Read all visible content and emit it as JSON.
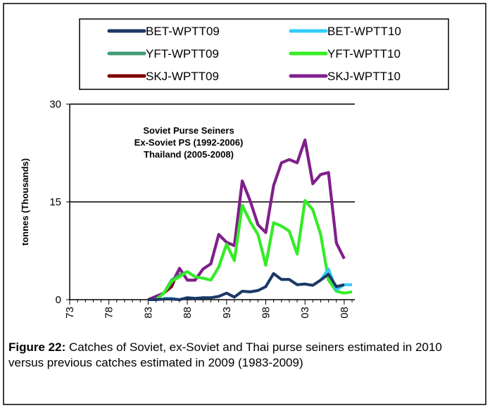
{
  "chart_data": {
    "type": "line",
    "annotations": [
      "Soviet Purse Seiners",
      "Ex-Soviet PS (1992-2006)",
      "Thailand (2005-2008)"
    ],
    "y_label": "tonnes (Thousands)",
    "categories": [
      "73",
      null,
      null,
      null,
      null,
      "78",
      null,
      null,
      null,
      null,
      "83",
      null,
      null,
      null,
      null,
      "88",
      null,
      null,
      null,
      null,
      "93",
      null,
      null,
      null,
      null,
      "98",
      null,
      null,
      null,
      null,
      "03",
      null,
      null,
      null,
      null,
      "08",
      null
    ],
    "ylim": [
      0,
      30
    ],
    "yticks": [
      0,
      15,
      30
    ],
    "grid": true,
    "series": [
      {
        "name": "BET-WPTT09",
        "color": "#1f3864",
        "values": [
          null,
          null,
          null,
          null,
          null,
          null,
          null,
          null,
          null,
          null,
          0,
          0,
          0.1,
          0.1,
          0,
          0.3,
          0.2,
          0.3,
          0.3,
          0.5,
          1.0,
          0.4,
          1.3,
          1.2,
          1.4,
          2.0,
          4.0,
          3.1,
          3.1,
          2.3,
          2.4,
          2.2,
          3.0,
          3.9,
          2.0,
          2.3,
          null
        ]
      },
      {
        "name": "BET-WPTT10",
        "color": "#33ccff",
        "values": [
          null,
          null,
          null,
          null,
          null,
          null,
          null,
          null,
          null,
          null,
          null,
          null,
          0.2,
          0.2,
          0,
          0.3,
          0.2,
          0.3,
          0.3,
          0.5,
          1.0,
          0.4,
          1.3,
          1.2,
          1.4,
          2.0,
          4.0,
          3.1,
          3.1,
          2.3,
          2.4,
          2.2,
          3.0,
          4.7,
          1.5,
          2.3,
          2.3
        ]
      },
      {
        "name": "YFT-WPTT09",
        "color": "#3f9a72",
        "values": [
          null,
          null,
          null,
          null,
          null,
          null,
          null,
          null,
          null,
          null,
          null,
          0,
          1.0,
          3.0,
          3.8,
          4.3,
          3.5,
          3.3,
          3.0,
          5.0,
          8.5,
          6.0,
          14.5,
          12.0,
          10.0,
          5.3,
          11.8,
          11.3,
          10.5,
          7.0,
          15.2,
          13.8,
          10.0,
          3.0,
          1.3,
          1.0,
          null
        ]
      },
      {
        "name": "YFT-WPTT10",
        "color": "#33ee22",
        "values": [
          null,
          null,
          null,
          null,
          null,
          null,
          null,
          null,
          null,
          null,
          null,
          0,
          1.0,
          2.8,
          3.5,
          4.3,
          3.5,
          3.3,
          3.0,
          5.0,
          8.5,
          6.0,
          14.5,
          12.0,
          10.0,
          5.3,
          11.8,
          11.3,
          10.5,
          7.0,
          15.2,
          13.8,
          10.0,
          3.0,
          1.3,
          1.0,
          1.2
        ]
      },
      {
        "name": "SKJ-WPTT09",
        "color": "#800000",
        "values": [
          null,
          null,
          null,
          null,
          null,
          null,
          null,
          null,
          null,
          null,
          0,
          0.5,
          1.0,
          2.0,
          4.8,
          3.0,
          3.0,
          4.7,
          5.5,
          10.0,
          8.8,
          8.3,
          18.2,
          15.2,
          11.5,
          10.3,
          17.5,
          21.0,
          21.5,
          21.0,
          24.5,
          17.8,
          19.2,
          19.5,
          8.7,
          6.3,
          null
        ]
      },
      {
        "name": "SKJ-WPTT10",
        "color": "#7f1f8f",
        "values": [
          null,
          null,
          null,
          null,
          null,
          null,
          null,
          null,
          null,
          null,
          0,
          0.5,
          1.0,
          2.5,
          4.8,
          3.0,
          3.0,
          4.7,
          5.5,
          10.0,
          8.8,
          8.3,
          18.2,
          15.2,
          11.5,
          10.3,
          17.5,
          21.0,
          21.5,
          21.0,
          24.5,
          17.8,
          19.2,
          19.5,
          8.7,
          6.3,
          null
        ]
      }
    ]
  },
  "caption": {
    "label": "Figure 22:",
    "text": "Catches of Soviet, ex-Soviet and Thai purse seiners estimated in 2010 versus previous catches estimated in 2009 (1983-2009)"
  }
}
